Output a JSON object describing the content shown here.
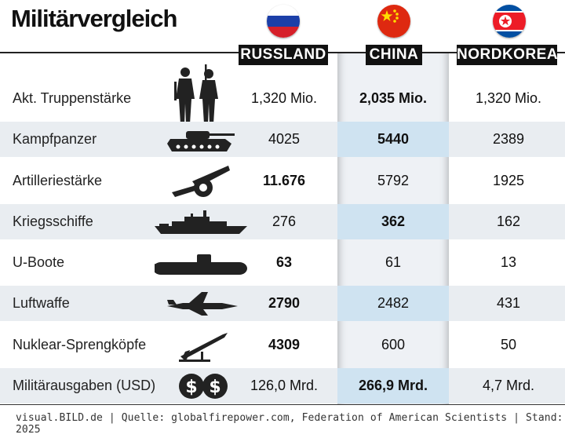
{
  "title": "Militärvergleich",
  "countries": [
    {
      "name": "RUSSLAND",
      "flag": "russia-flag-icon"
    },
    {
      "name": "CHINA",
      "flag": "china-flag-icon"
    },
    {
      "name": "NORDKOREA",
      "flag": "north-korea-flag-icon"
    }
  ],
  "rows": [
    {
      "label": "Akt. Truppenstärke",
      "icon": "soldiers-icon",
      "ru": "1,320 Mio.",
      "cn": "2,035 Mio.",
      "nk": "1,320 Mio.",
      "bold": "cn"
    },
    {
      "label": "Kampfpanzer",
      "icon": "tank-icon",
      "ru": "4025",
      "cn": "5440",
      "nk": "2389",
      "bold": "cn"
    },
    {
      "label": "Artilleriestärke",
      "icon": "artillery-icon",
      "ru": "11.676",
      "cn": "5792",
      "nk": "1925",
      "bold": "ru"
    },
    {
      "label": "Kriegsschiffe",
      "icon": "warship-icon",
      "ru": "276",
      "cn": "362",
      "nk": "162",
      "bold": "cn"
    },
    {
      "label": "U-Boote",
      "icon": "submarine-icon",
      "ru": "63",
      "cn": "61",
      "nk": "13",
      "bold": "ru"
    },
    {
      "label": "Luftwaffe",
      "icon": "fighter-jet-icon",
      "ru": "2790",
      "cn": "2482",
      "nk": "431",
      "bold": "ru"
    },
    {
      "label": "Nuklear-Sprengköpfe",
      "icon": "missile-icon",
      "ru": "4309",
      "cn": "600",
      "nk": "50",
      "bold": "ru"
    },
    {
      "label": "Militärausgaben (USD)",
      "icon": "dollar-coins-icon",
      "ru": "126,0 Mrd.",
      "cn": "266,9 Mrd.",
      "nk": "4,7 Mrd.",
      "bold": "cn"
    }
  ],
  "footer": "visual.BILD.de | Quelle: globalfirepower.com, Federation of American Scientists | Stand: 2025",
  "colors": {
    "highlight_row": "#e9edf1",
    "china_cell": "#cfe3f1",
    "badge": "#111111"
  }
}
